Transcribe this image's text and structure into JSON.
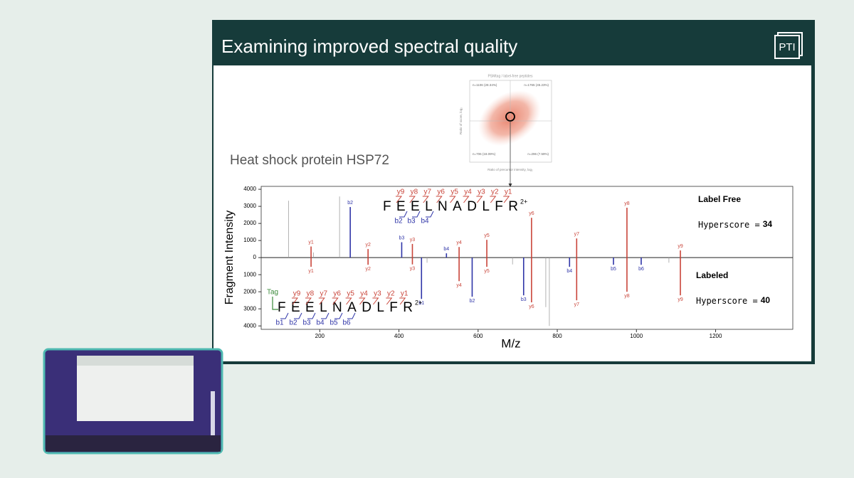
{
  "slide": {
    "title": "Examining improved spectral quality",
    "logo": "PTI",
    "protein": "Heat shock protein HSP72",
    "inset": {
      "title": "PSMtag / label-free peptides",
      "xlabel": "Ratio of precursor intensity, log₂",
      "ylabel": "Ratio of score, log₂",
      "quadrants": [
        "n=1106 (28.34%)",
        "n=1765 (45.23%)",
        "n=706 (18.09%)",
        "n=296 (7.59%)"
      ]
    }
  },
  "chart_data": {
    "type": "bar",
    "xlabel": "M/z",
    "ylabel": "Fragment Intensity",
    "xlim": [
      52,
      1395
    ],
    "ylim": [
      -4200,
      4170
    ],
    "xticks": [
      200,
      400,
      600,
      800,
      1000,
      1200
    ],
    "yticks": [
      {
        "value": -4000,
        "label": "4000"
      },
      {
        "value": -3000,
        "label": "3000"
      },
      {
        "value": -2000,
        "label": "2000"
      },
      {
        "value": -1000,
        "label": "1000"
      },
      0,
      1000,
      2000,
      3000,
      4000
    ],
    "panels": [
      {
        "name": "Label Free",
        "score_label": "Hyperscore =",
        "score": 34,
        "series": [
          {
            "color": "#c9453a",
            "ions": [
              "y1",
              "y2",
              "y3",
              "y4",
              "y5",
              "y6",
              "y7",
              "y8",
              "y9"
            ],
            "x": [
              178,
              322,
              434,
              552,
              622,
              735,
              849,
              976,
              1111
            ],
            "values": [
              650,
              500,
              800,
              620,
              1040,
              2330,
              1120,
              2920,
              420
            ]
          },
          {
            "color": "#2f35a8",
            "ions": [
              "b2",
              "b3",
              "b4"
            ],
            "x": [
              277,
              407,
              520
            ],
            "values": [
              2960,
              900,
              250
            ]
          }
        ]
      },
      {
        "name": "Labeled",
        "score_label": "Hyperscore =",
        "score": 40,
        "series": [
          {
            "color": "#c9453a",
            "ions": [
              "y1",
              "y2",
              "y3",
              "y4",
              "y5",
              "y6",
              "y7",
              "y8",
              "y9"
            ],
            "x": [
              178,
              322,
              434,
              552,
              622,
              735,
              849,
              976,
              1111
            ],
            "values": [
              -540,
              -420,
              -400,
              -1380,
              -540,
              -2620,
              -2500,
              -2000,
              -2210
            ]
          },
          {
            "color": "#2f35a8",
            "ions": [
              "b1",
              "b2",
              "b3",
              "b4",
              "b5",
              "b6"
            ],
            "x": [
              457,
              585,
              715,
              831,
              942,
              1012
            ],
            "values": [
              -2420,
              -2290,
              -2210,
              -540,
              -420,
              -420
            ]
          }
        ]
      }
    ],
    "unannotated": {
      "color": "#a0a0a0",
      "x": [
        121,
        184,
        250,
        471,
        687,
        771,
        780,
        1082
      ],
      "values": [
        3330,
        300,
        3580,
        -300,
        -400,
        -2900,
        -4000,
        -300
      ]
    },
    "sequences": [
      {
        "letters": "FEELNADLFR",
        "charge": "2+",
        "y_ions": [
          "y9",
          "y8",
          "y7",
          "y6",
          "y5",
          "y4",
          "y3",
          "y2",
          "y1"
        ],
        "b_ions": [
          "b2",
          "b3",
          "b4"
        ]
      },
      {
        "tag": "Tag",
        "letters": "FEELNADLFR",
        "charge": "2+",
        "y_ions": [
          "y9",
          "y8",
          "y7",
          "y6",
          "y5",
          "y4",
          "y3",
          "y2",
          "y1"
        ],
        "b_ions": [
          "b1",
          "b2",
          "b3",
          "b4",
          "b5",
          "b6"
        ]
      }
    ]
  }
}
